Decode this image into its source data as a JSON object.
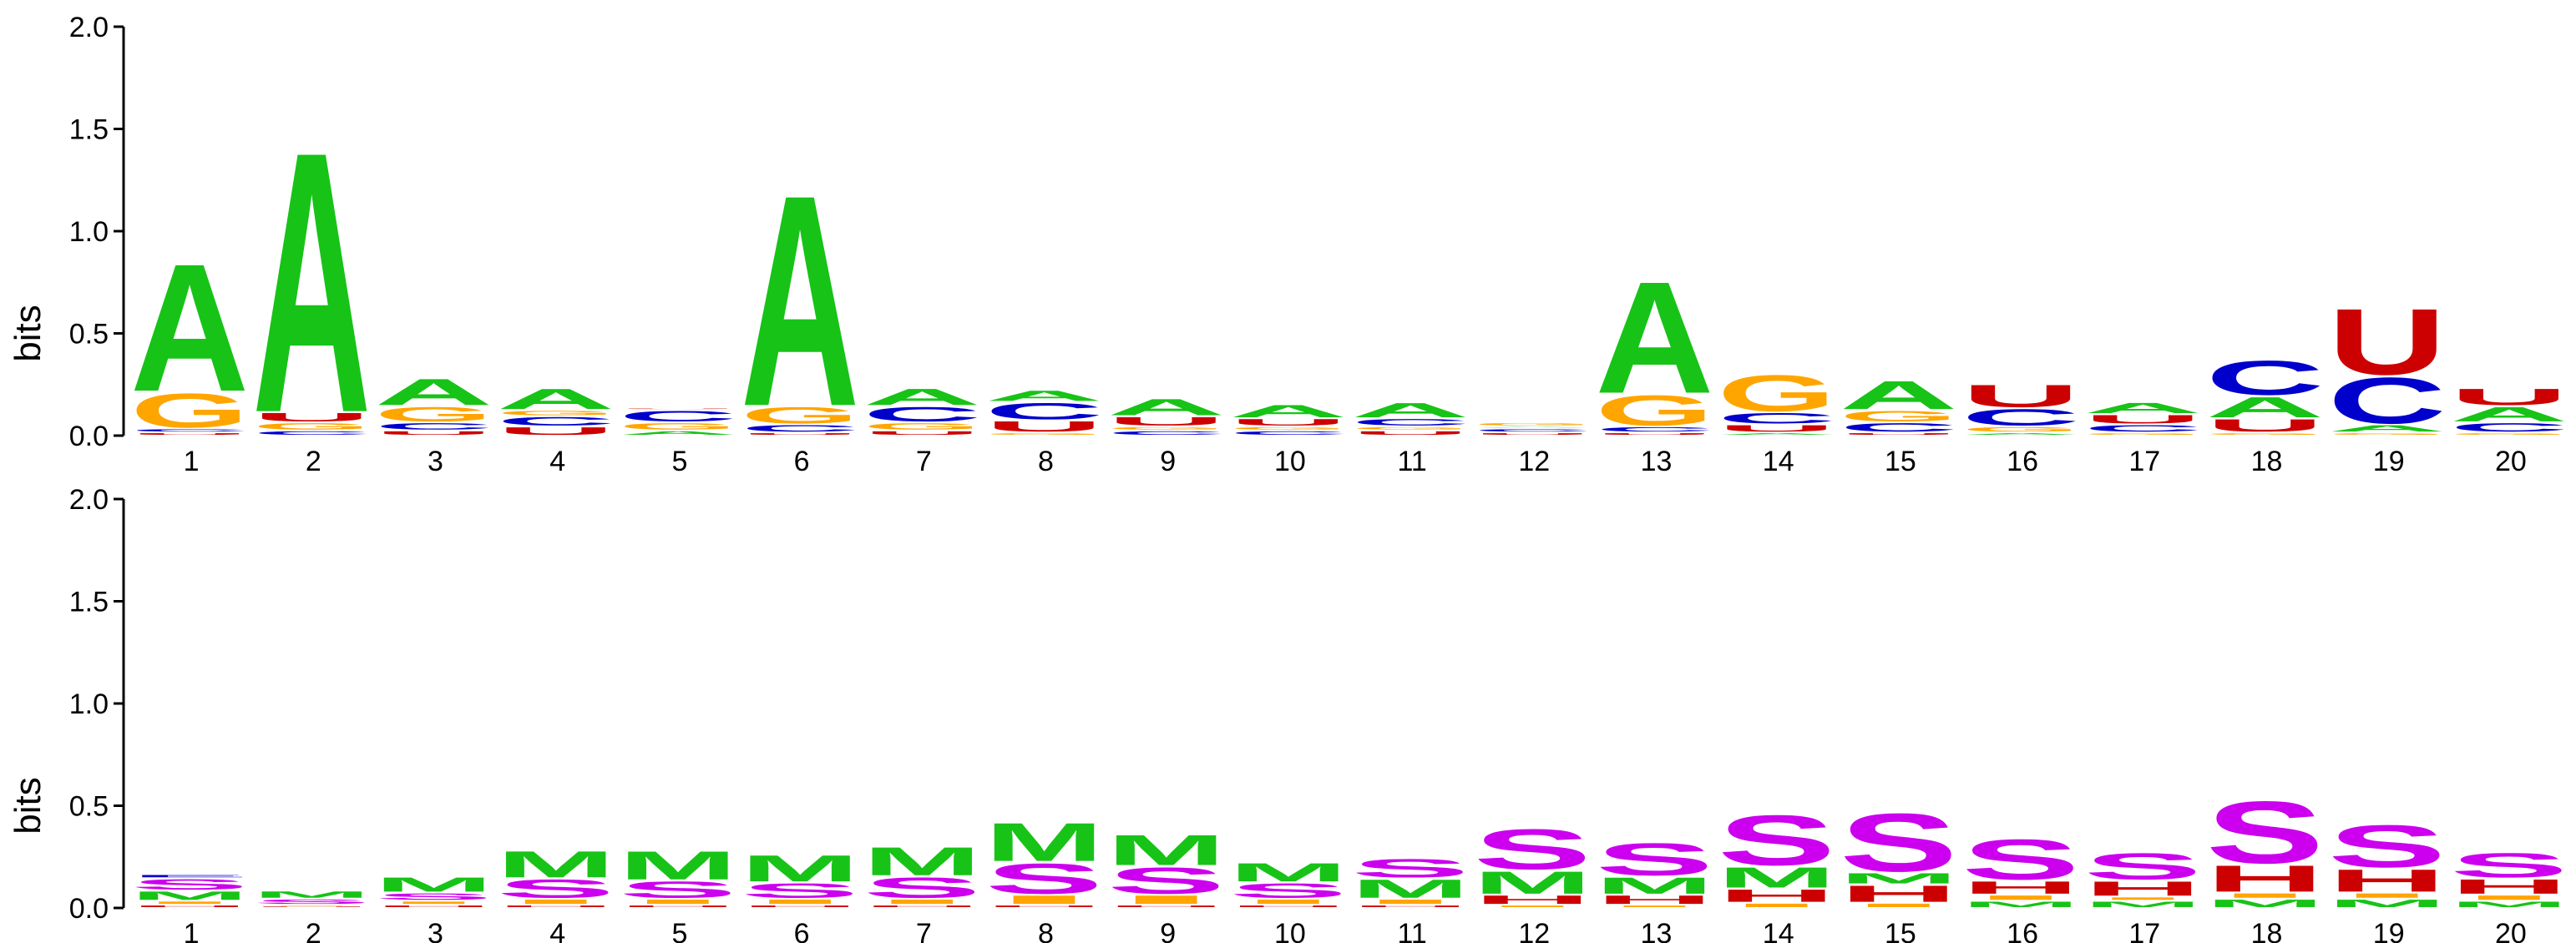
{
  "chart_data": [
    {
      "type": "sequence_logo",
      "alphabet": "RNA",
      "ylabel": "bits",
      "ylim": [
        0,
        2
      ],
      "yticks": [
        "0.0",
        "0.5",
        "1.0",
        "1.5",
        "2.0"
      ],
      "positions": [
        "1",
        "2",
        "3",
        "4",
        "5",
        "6",
        "7",
        "8",
        "9",
        "10",
        "11",
        "12",
        "13",
        "14",
        "15",
        "16",
        "17",
        "18",
        "19",
        "20"
      ],
      "stacks": [
        [
          [
            "U",
            0.02
          ],
          [
            "C",
            0.02
          ],
          [
            "G",
            0.18
          ],
          [
            "A",
            0.65
          ]
        ],
        [
          [
            "C",
            0.03
          ],
          [
            "G",
            0.04
          ],
          [
            "U",
            0.05
          ],
          [
            "A",
            1.32
          ]
        ],
        [
          [
            "U",
            0.03
          ],
          [
            "C",
            0.04
          ],
          [
            "G",
            0.08
          ],
          [
            "A",
            0.14
          ]
        ],
        [
          [
            "U",
            0.05
          ],
          [
            "C",
            0.05
          ],
          [
            "G",
            0.03
          ],
          [
            "A",
            0.11
          ]
        ],
        [
          [
            "A",
            0.03
          ],
          [
            "G",
            0.04
          ],
          [
            "C",
            0.06
          ],
          [
            "U",
            0.01
          ]
        ],
        [
          [
            "U",
            0.02
          ],
          [
            "C",
            0.04
          ],
          [
            "G",
            0.09
          ],
          [
            "A",
            1.07
          ]
        ],
        [
          [
            "U",
            0.03
          ],
          [
            "G",
            0.04
          ],
          [
            "C",
            0.08
          ],
          [
            "A",
            0.09
          ]
        ],
        [
          [
            "G",
            0.02
          ],
          [
            "U",
            0.06
          ],
          [
            "C",
            0.09
          ],
          [
            "A",
            0.06
          ]
        ],
        [
          [
            "C",
            0.03
          ],
          [
            "G",
            0.02
          ],
          [
            "U",
            0.05
          ],
          [
            "A",
            0.09
          ]
        ],
        [
          [
            "C",
            0.03
          ],
          [
            "G",
            0.02
          ],
          [
            "U",
            0.04
          ],
          [
            "A",
            0.07
          ]
        ],
        [
          [
            "U",
            0.03
          ],
          [
            "G",
            0.02
          ],
          [
            "C",
            0.04
          ],
          [
            "A",
            0.08
          ]
        ],
        [
          [
            "U",
            0.02
          ],
          [
            "C",
            0.02
          ],
          [
            "A",
            0.01
          ],
          [
            "G",
            0.02
          ]
        ],
        [
          [
            "U",
            0.02
          ],
          [
            "C",
            0.03
          ],
          [
            "G",
            0.16
          ],
          [
            "A",
            0.57
          ]
        ],
        [
          [
            "A",
            0.02
          ],
          [
            "U",
            0.04
          ],
          [
            "C",
            0.06
          ],
          [
            "G",
            0.19
          ]
        ],
        [
          [
            "U",
            0.02
          ],
          [
            "C",
            0.05
          ],
          [
            "G",
            0.06
          ],
          [
            "A",
            0.15
          ]
        ],
        [
          [
            "A",
            0.02
          ],
          [
            "G",
            0.03
          ],
          [
            "C",
            0.09
          ],
          [
            "U",
            0.12
          ]
        ],
        [
          [
            "G",
            0.02
          ],
          [
            "C",
            0.04
          ],
          [
            "U",
            0.05
          ],
          [
            "A",
            0.06
          ]
        ],
        [
          [
            "G",
            0.02
          ],
          [
            "U",
            0.07
          ],
          [
            "A",
            0.11
          ],
          [
            "C",
            0.18
          ]
        ],
        [
          [
            "G",
            0.02
          ],
          [
            "A",
            0.04
          ],
          [
            "C",
            0.24
          ],
          [
            "U",
            0.34
          ]
        ],
        [
          [
            "G",
            0.02
          ],
          [
            "C",
            0.05
          ],
          [
            "A",
            0.08
          ],
          [
            "U",
            0.09
          ]
        ]
      ]
    },
    {
      "type": "sequence_logo",
      "alphabet": "structure",
      "ylabel": "bits",
      "ylim": [
        0,
        2
      ],
      "yticks": [
        "0.0",
        "0.5",
        "1.0",
        "1.5",
        "2.0"
      ],
      "positions": [
        "1",
        "2",
        "3",
        "4",
        "5",
        "6",
        "7",
        "8",
        "9",
        "10",
        "11",
        "12",
        "13",
        "14",
        "15",
        "16",
        "17",
        "18",
        "19",
        "20"
      ],
      "stacks": [
        [
          [
            "H",
            0.02
          ],
          [
            "I",
            0.02
          ],
          [
            "M",
            0.05
          ],
          [
            "S",
            0.06
          ],
          [
            "E",
            0.02
          ]
        ],
        [
          [
            "H",
            0.01
          ],
          [
            "I",
            0.01
          ],
          [
            "S",
            0.03
          ],
          [
            "M",
            0.04
          ]
        ],
        [
          [
            "H",
            0.02
          ],
          [
            "I",
            0.02
          ],
          [
            "S",
            0.04
          ],
          [
            "M",
            0.08
          ]
        ],
        [
          [
            "H",
            0.02
          ],
          [
            "I",
            0.03
          ],
          [
            "S",
            0.1
          ],
          [
            "M",
            0.14
          ]
        ],
        [
          [
            "H",
            0.02
          ],
          [
            "I",
            0.03
          ],
          [
            "S",
            0.09
          ],
          [
            "M",
            0.15
          ]
        ],
        [
          [
            "H",
            0.02
          ],
          [
            "I",
            0.03
          ],
          [
            "S",
            0.08
          ],
          [
            "M",
            0.14
          ]
        ],
        [
          [
            "H",
            0.02
          ],
          [
            "I",
            0.03
          ],
          [
            "S",
            0.11
          ],
          [
            "M",
            0.15
          ]
        ],
        [
          [
            "H",
            0.02
          ],
          [
            "I",
            0.05
          ],
          [
            "S",
            0.16
          ],
          [
            "M",
            0.2
          ]
        ],
        [
          [
            "H",
            0.02
          ],
          [
            "I",
            0.05
          ],
          [
            "S",
            0.14
          ],
          [
            "M",
            0.16
          ]
        ],
        [
          [
            "H",
            0.02
          ],
          [
            "I",
            0.03
          ],
          [
            "S",
            0.08
          ],
          [
            "M",
            0.1
          ]
        ],
        [
          [
            "H",
            0.02
          ],
          [
            "I",
            0.03
          ],
          [
            "M",
            0.1
          ],
          [
            "S",
            0.1
          ]
        ],
        [
          [
            "I",
            0.02
          ],
          [
            "H",
            0.05
          ],
          [
            "M",
            0.12
          ],
          [
            "S",
            0.21
          ]
        ],
        [
          [
            "I",
            0.02
          ],
          [
            "H",
            0.05
          ],
          [
            "M",
            0.09
          ],
          [
            "S",
            0.17
          ]
        ],
        [
          [
            "I",
            0.03
          ],
          [
            "H",
            0.07
          ],
          [
            "M",
            0.11
          ],
          [
            "S",
            0.26
          ]
        ],
        [
          [
            "I",
            0.03
          ],
          [
            "H",
            0.09
          ],
          [
            "M",
            0.06
          ],
          [
            "S",
            0.3
          ]
        ],
        [
          [
            "M",
            0.04
          ],
          [
            "I",
            0.03
          ],
          [
            "H",
            0.07
          ],
          [
            "S",
            0.21
          ]
        ],
        [
          [
            "M",
            0.04
          ],
          [
            "I",
            0.02
          ],
          [
            "H",
            0.08
          ],
          [
            "S",
            0.14
          ]
        ],
        [
          [
            "M",
            0.05
          ],
          [
            "I",
            0.03
          ],
          [
            "H",
            0.14
          ],
          [
            "S",
            0.32
          ]
        ],
        [
          [
            "M",
            0.05
          ],
          [
            "I",
            0.03
          ],
          [
            "H",
            0.12
          ],
          [
            "S",
            0.22
          ]
        ],
        [
          [
            "M",
            0.04
          ],
          [
            "I",
            0.03
          ],
          [
            "H",
            0.08
          ],
          [
            "S",
            0.13
          ]
        ]
      ]
    }
  ],
  "colors": {
    "A": "#17c317",
    "C": "#0000cc",
    "G": "#ffa500",
    "U": "#cc0000",
    "S": "#cc00ee",
    "M": "#17c317",
    "H": "#cc0000",
    "I": "#ffa500",
    "E": "#0000cc"
  }
}
